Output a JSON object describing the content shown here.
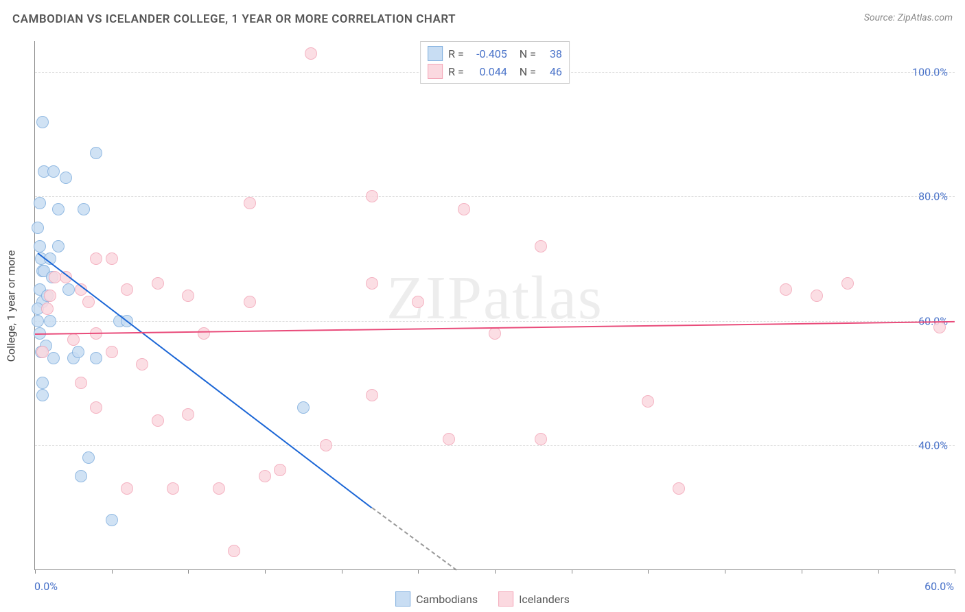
{
  "title": "CAMBODIAN VS ICELANDER COLLEGE, 1 YEAR OR MORE CORRELATION CHART",
  "source": "Source: ZipAtlas.com",
  "ylabel": "College, 1 year or more",
  "watermark": "ZIPatlas",
  "chart": {
    "type": "scatter",
    "xlim": [
      0,
      60
    ],
    "ylim": [
      20,
      105
    ],
    "background_color": "#ffffff",
    "grid_color": "#dddddd",
    "y_gridlines": [
      40,
      60,
      80,
      100
    ],
    "y_tick_labels": [
      "40.0%",
      "60.0%",
      "80.0%",
      "100.0%"
    ],
    "x_ticks": [
      0,
      5,
      10,
      15,
      20,
      25,
      30,
      35,
      40,
      45,
      50,
      55,
      60
    ],
    "x_axis_left_label": "0.0%",
    "x_axis_right_label": "60.0%",
    "axis_label_color": "#4a73c9",
    "point_radius": 9,
    "point_border_width": 1.5,
    "series": [
      {
        "name": "Cambodians",
        "fill": "#c8ddf3",
        "stroke": "#7faede",
        "reg_color": "#1b66d6",
        "R": "-0.405",
        "N": "38",
        "reg_line": {
          "x1": 0.2,
          "y1": 71,
          "x2": 22,
          "y2": 30
        },
        "reg_extrap": {
          "x1": 22,
          "y1": 30,
          "x2": 27.5,
          "y2": 20
        },
        "points": [
          [
            0.5,
            92
          ],
          [
            0.6,
            84
          ],
          [
            1.2,
            84
          ],
          [
            2.0,
            83
          ],
          [
            4.0,
            87
          ],
          [
            0.3,
            79
          ],
          [
            1.5,
            78
          ],
          [
            3.2,
            78
          ],
          [
            0.2,
            75
          ],
          [
            0.3,
            72
          ],
          [
            0.4,
            70
          ],
          [
            1.0,
            70
          ],
          [
            0.5,
            68
          ],
          [
            0.3,
            65
          ],
          [
            0.5,
            63
          ],
          [
            1.0,
            60
          ],
          [
            5.5,
            60
          ],
          [
            6.0,
            60
          ],
          [
            0.7,
            56
          ],
          [
            1.2,
            54
          ],
          [
            2.5,
            54
          ],
          [
            2.8,
            55
          ],
          [
            4.0,
            54
          ],
          [
            0.5,
            50
          ],
          [
            3.5,
            38
          ],
          [
            17.5,
            46
          ],
          [
            3.0,
            35
          ],
          [
            0.2,
            60
          ],
          [
            0.3,
            58
          ],
          [
            0.4,
            55
          ],
          [
            0.5,
            48
          ],
          [
            5.0,
            28
          ],
          [
            0.6,
            68
          ],
          [
            1.1,
            67
          ],
          [
            0.2,
            62
          ],
          [
            0.8,
            64
          ],
          [
            1.5,
            72
          ],
          [
            2.2,
            65
          ]
        ]
      },
      {
        "name": "Icelanders",
        "fill": "#fbd9e0",
        "stroke": "#f3a6b8",
        "reg_color": "#e94b7a",
        "R": "0.044",
        "N": "46",
        "reg_line": {
          "x1": 0,
          "y1": 58,
          "x2": 60,
          "y2": 60
        },
        "points": [
          [
            18,
            103
          ],
          [
            22,
            80
          ],
          [
            14,
            79
          ],
          [
            28,
            78
          ],
          [
            22,
            66
          ],
          [
            33,
            72
          ],
          [
            53,
            66
          ],
          [
            49,
            65
          ],
          [
            51,
            64
          ],
          [
            40,
            47
          ],
          [
            59,
            59
          ],
          [
            27,
            41
          ],
          [
            33,
            41
          ],
          [
            22,
            48
          ],
          [
            19,
            40
          ],
          [
            15,
            35
          ],
          [
            13,
            23
          ],
          [
            12,
            33
          ],
          [
            10,
            45
          ],
          [
            8,
            44
          ],
          [
            9,
            33
          ],
          [
            6,
            33
          ],
          [
            4,
            46
          ],
          [
            3,
            50
          ],
          [
            4,
            58
          ],
          [
            5,
            55
          ],
          [
            7,
            53
          ],
          [
            8,
            66
          ],
          [
            6,
            65
          ],
          [
            5,
            70
          ],
          [
            4,
            70
          ],
          [
            3,
            65
          ],
          [
            2,
            67
          ],
          [
            1.3,
            67
          ],
          [
            1.0,
            64
          ],
          [
            0.8,
            62
          ],
          [
            0.5,
            55
          ],
          [
            2.5,
            57
          ],
          [
            3.5,
            63
          ],
          [
            10,
            64
          ],
          [
            14,
            63
          ],
          [
            11,
            58
          ],
          [
            16,
            36
          ],
          [
            30,
            58
          ],
          [
            42,
            33
          ],
          [
            25,
            63
          ]
        ]
      }
    ]
  },
  "legend": {
    "items": [
      "Cambodians",
      "Icelanders"
    ]
  }
}
